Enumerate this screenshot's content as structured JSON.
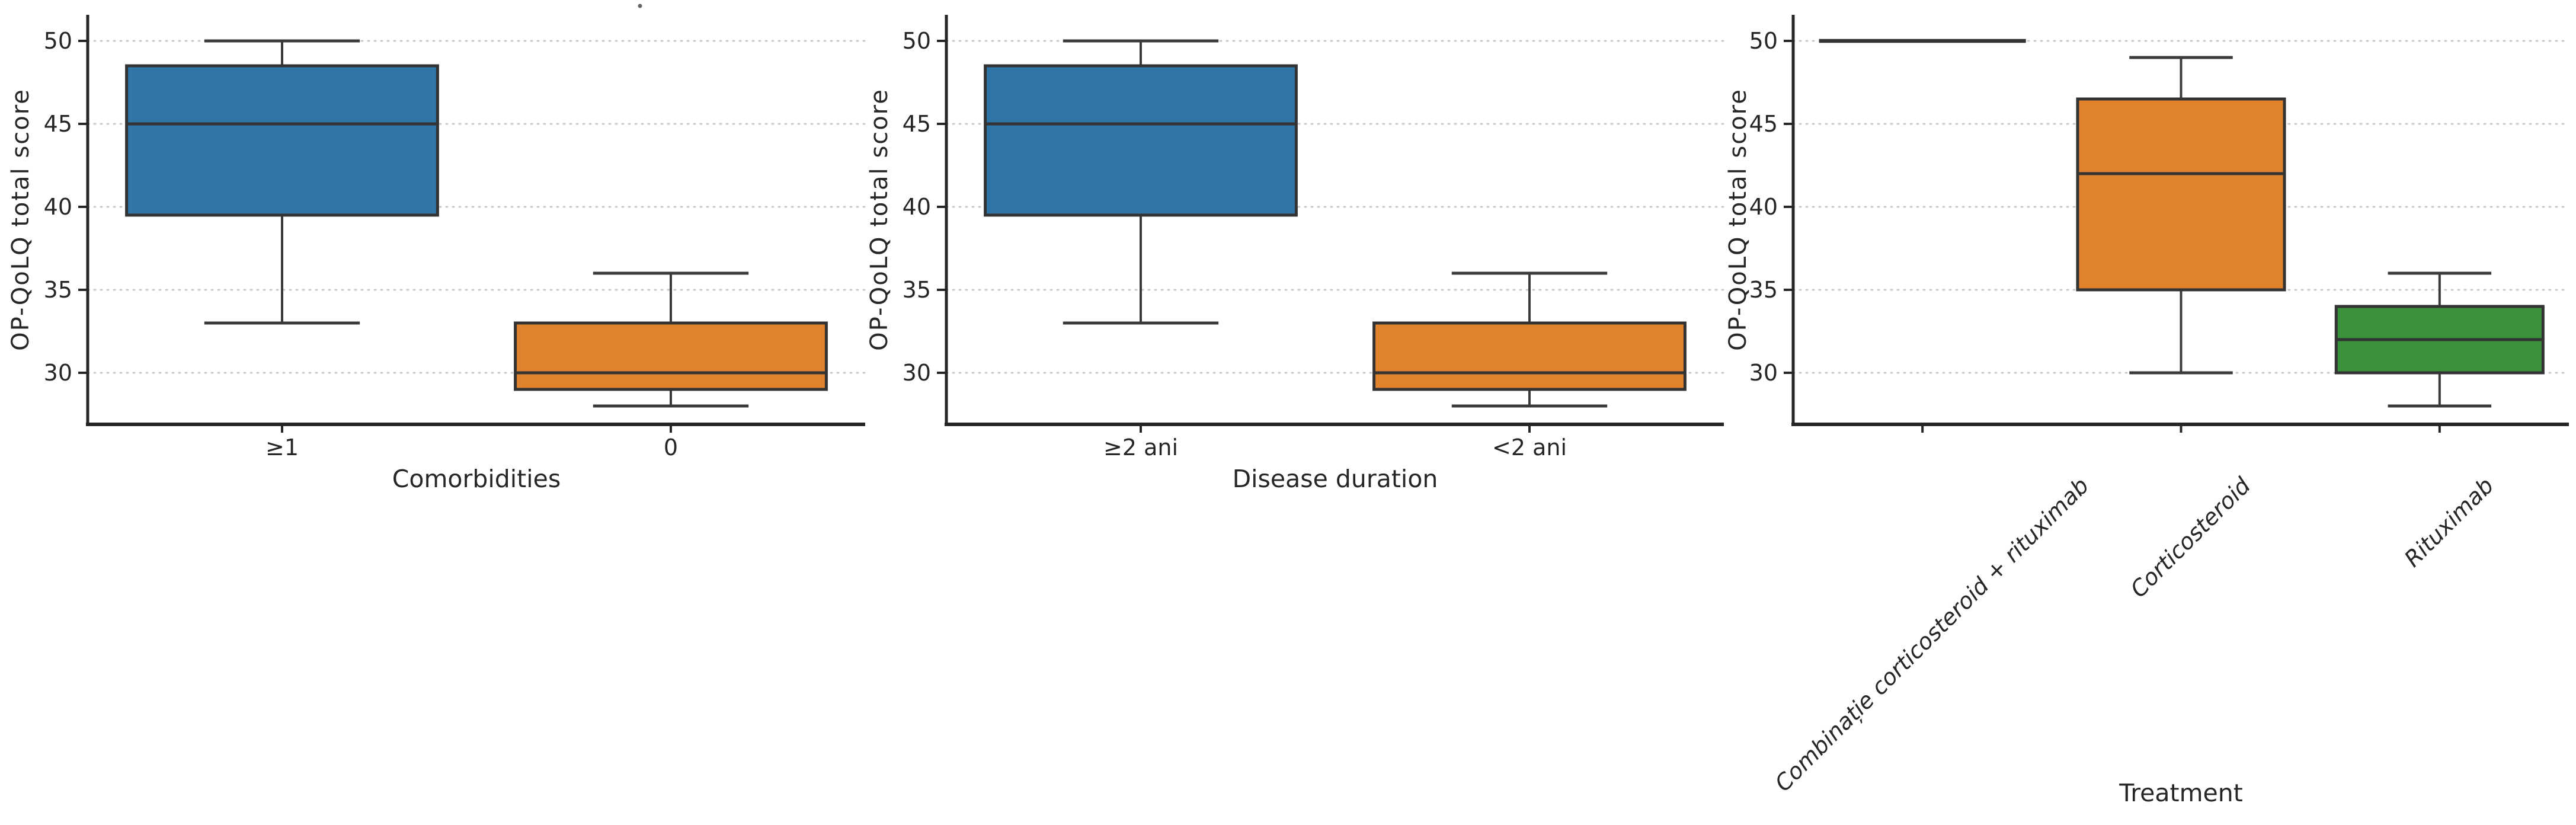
{
  "figure": {
    "background": "#ffffff",
    "shared_ylabel": "OP-QoLQ total score",
    "stray_mark": "."
  },
  "colors": {
    "blue": "#3075a8",
    "orange": "#e1822d",
    "green": "#3a923c",
    "box_edge": "#333333",
    "whisker": "#3a3a3a",
    "spine": "#262626",
    "grid": "#c9c9c9",
    "tick_label": "#262626"
  },
  "chart_data": [
    {
      "type": "box",
      "panel": "comorbidities",
      "xlabel": "Comorbidities",
      "ylabel": "OP-QoLQ total score",
      "yticks": [
        30,
        35,
        40,
        45,
        50
      ],
      "ylim": [
        27,
        51.5
      ],
      "grid": "horizontal-dotted",
      "tick_label_style": "upright",
      "categories": [
        "≥1",
        "0"
      ],
      "series": [
        {
          "category": "≥1",
          "box_color": "#3075a8",
          "whisker_low": 33,
          "q1": 39.5,
          "median": 45,
          "q3": 48.5,
          "whisker_high": 50
        },
        {
          "category": "0",
          "box_color": "#e1822d",
          "whisker_low": 28,
          "q1": 29,
          "median": 30,
          "q3": 33,
          "whisker_high": 36
        }
      ]
    },
    {
      "type": "box",
      "panel": "disease-duration",
      "xlabel": "Disease duration",
      "ylabel": "OP-QoLQ total score",
      "yticks": [
        30,
        35,
        40,
        45,
        50
      ],
      "ylim": [
        27,
        51.5
      ],
      "grid": "horizontal-dotted",
      "tick_label_style": "upright",
      "categories": [
        "≥2 ani",
        "<2 ani"
      ],
      "series": [
        {
          "category": "≥2 ani",
          "box_color": "#3075a8",
          "whisker_low": 33,
          "q1": 39.5,
          "median": 45,
          "q3": 48.5,
          "whisker_high": 50
        },
        {
          "category": "<2 ani",
          "box_color": "#e1822d",
          "whisker_low": 28,
          "q1": 29,
          "median": 30,
          "q3": 33,
          "whisker_high": 36
        }
      ]
    },
    {
      "type": "box",
      "panel": "treatment",
      "xlabel": "Treatment",
      "ylabel": "OP-QoLQ total score",
      "yticks": [
        30,
        35,
        40,
        45,
        50
      ],
      "ylim": [
        27,
        51.5
      ],
      "grid": "horizontal-dotted",
      "tick_label_style": "italic-rotated-45",
      "categories": [
        "Combinație corticosteroid + rituximab",
        "Corticosteroid",
        "Rituximab"
      ],
      "series": [
        {
          "category": "Combinație corticosteroid + rituximab",
          "box_color": "#3075a8",
          "single_value": 50,
          "whisker_low": 50,
          "q1": 50,
          "median": 50,
          "q3": 50,
          "whisker_high": 50
        },
        {
          "category": "Corticosteroid",
          "box_color": "#e1822d",
          "whisker_low": 30,
          "q1": 35,
          "median": 42,
          "q3": 46.5,
          "whisker_high": 49
        },
        {
          "category": "Rituximab",
          "box_color": "#3a923c",
          "whisker_low": 28,
          "q1": 30,
          "median": 32,
          "q3": 34,
          "whisker_high": 36
        }
      ]
    }
  ]
}
